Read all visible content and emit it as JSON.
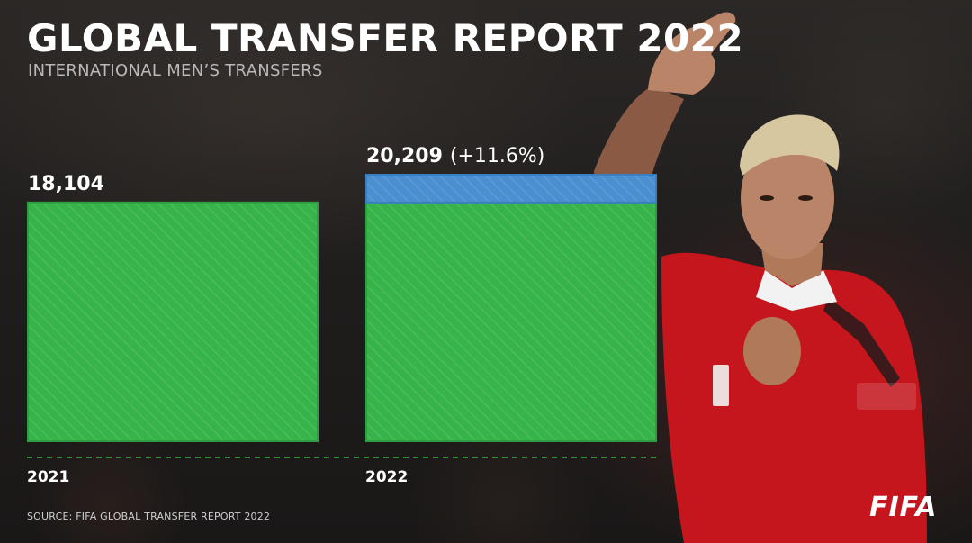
{
  "header": {
    "title": "GLOBAL TRANSFER REPORT 2022",
    "subtitle": "INTERNATIONAL MEN’S TRANSFERS"
  },
  "chart_data": {
    "type": "bar",
    "categories": [
      "2021",
      "2022"
    ],
    "values": [
      18104,
      20209
    ],
    "value_labels": [
      "18,104",
      "20,209"
    ],
    "change_labels": [
      "",
      "(+11.6%)"
    ],
    "ylim": [
      0,
      20209
    ],
    "grid": false,
    "stacked_increase": true,
    "colors": {
      "base": "#36b44a",
      "increase": "#4a8fd0",
      "baseline": "#36b44a"
    }
  },
  "footer": {
    "source": "SOURCE: FIFA GLOBAL TRANSFER REPORT 2022",
    "logo": "FIFA"
  },
  "background": {
    "description_icon": "football-player-photo-icon"
  }
}
